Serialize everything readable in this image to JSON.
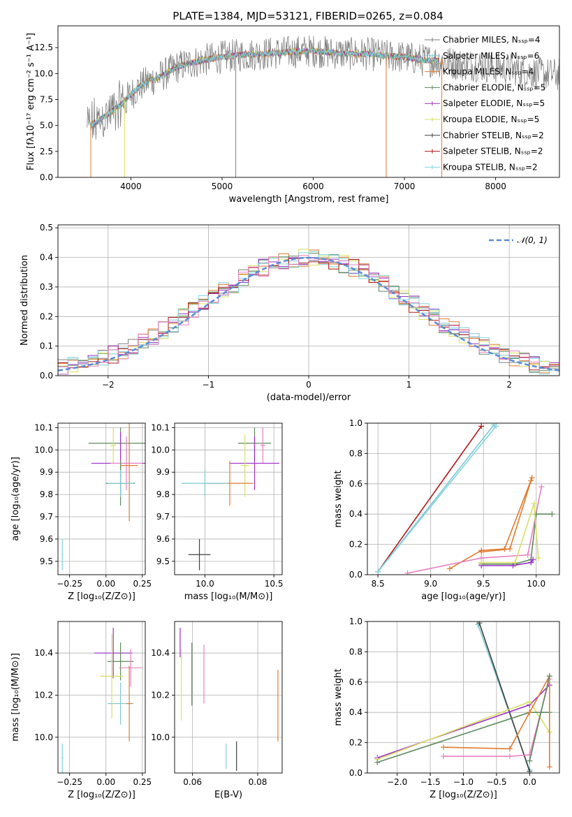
{
  "figure": {
    "title": "PLATE=1384, MJD=53121, FIBERID=0265, z=0.084"
  },
  "colors": {
    "Chabrier MILES": "#808080",
    "Salpeter MILES": "#7ec8d0",
    "Kroupa MILES": "#e07b30",
    "Chabrier ELODIE": "#5c8a5c",
    "Salpeter ELODIE": "#9b30c8",
    "Kroupa ELODIE": "#d8e060",
    "Chabrier STELIB": "#404040",
    "Salpeter STELIB": "#b01818",
    "Kroupa STELIB": "#80d4e0",
    "pink": "#e880c0"
  },
  "chart_data": [
    {
      "id": "spectrum",
      "type": "line",
      "title": "PLATE=1384, MJD=53121, FIBERID=0265, z=0.084",
      "xlabel": "wavelength [Angstrom, rest frame]",
      "ylabel": "Flux [fλ10⁻¹⁷ erg cm⁻² s⁻¹ A⁻¹]",
      "xlim": [
        3200,
        8700
      ],
      "ylim": [
        0,
        14.6
      ],
      "xticks": [
        "4000",
        "5000",
        "6000",
        "7000",
        "8000"
      ],
      "xtick_values": [
        4000,
        5000,
        6000,
        7000,
        8000
      ],
      "yticks": [
        "0.0",
        "2.5",
        "5.0",
        "7.5",
        "10.0",
        "12.5"
      ],
      "ytick_values": [
        0,
        2.5,
        5,
        7.5,
        10,
        12.5
      ],
      "continuum": {
        "x": [
          3500,
          3600,
          3700,
          3800,
          3900,
          4000,
          4100,
          4200,
          4300,
          4400,
          4500,
          4600,
          4800,
          5000,
          5200,
          5400,
          5600,
          5800,
          6000,
          6200,
          6400,
          6600,
          6800,
          7000,
          7200,
          7400,
          7600,
          7800,
          8000,
          8200,
          8400,
          8600
        ],
        "y": [
          4.8,
          5.2,
          5.8,
          6.4,
          7.1,
          8.0,
          8.8,
          9.3,
          9.6,
          10.1,
          10.6,
          10.9,
          11.3,
          11.6,
          11.8,
          11.9,
          12.0,
          12.1,
          12.2,
          12.0,
          11.9,
          11.9,
          11.7,
          11.6,
          11.3,
          11.2,
          10.9,
          10.8,
          10.6,
          10.4,
          10.1,
          9.9
        ]
      },
      "legend": [
        "Chabrier MILES, Nₛₛₚ=4",
        "Salpeter MILES, Nₛₛₚ=6",
        "Kroupa MILES, Nₛₛₚ=4",
        "Chabrier ELODIE, Nₛₛₚ=5",
        "Salpeter ELODIE, Nₛₛₚ=5",
        "Kroupa ELODIE, Nₛₛₚ=5",
        "Chabrier STELIB, Nₛₛₚ=2",
        "Salpeter STELIB, Nₛₛₚ=2",
        "Kroupa STELIB, Nₛₛₚ=2"
      ],
      "legend_placement": "right",
      "grid": false
    },
    {
      "id": "residuals",
      "type": "line",
      "xlabel": "(data-model)/error",
      "ylabel": "Normed distribution",
      "xlim": [
        -2.5,
        2.5
      ],
      "ylim": [
        0,
        0.51
      ],
      "xticks": [
        "−2",
        "−1",
        "0",
        "1",
        "2"
      ],
      "xtick_values": [
        -2,
        -1,
        0,
        1,
        2
      ],
      "yticks": [
        "0.0",
        "0.1",
        "0.2",
        "0.3",
        "0.4",
        "0.5"
      ],
      "ytick_values": [
        0,
        0.1,
        0.2,
        0.3,
        0.4,
        0.5
      ],
      "legend": [
        "𝒩(0, 1)"
      ],
      "legend_placement": "top-right",
      "grid": true,
      "bin_edges_start": -2.5,
      "bin_width": 0.1,
      "n_bins": 50
    },
    {
      "id": "age-vs-Z",
      "type": "scatter",
      "xlabel": "Z [log₁₀(Z/Z⊙)]",
      "ylabel": "age  [log₁₀(age/yr)]",
      "xlim": [
        -0.33,
        0.27
      ],
      "ylim": [
        9.44,
        10.12
      ],
      "xticks": [
        "−0.25",
        "0.00",
        "0.25"
      ],
      "xtick_values": [
        -0.25,
        0,
        0.25
      ],
      "yticks": [
        "9.5",
        "9.6",
        "9.7",
        "9.8",
        "9.9",
        "10.0",
        "10.1"
      ],
      "ytick_values": [
        9.5,
        9.6,
        9.7,
        9.8,
        9.9,
        10.0,
        10.1
      ],
      "grid": true,
      "points": [
        {
          "x": 0.1,
          "y": 10.03,
          "xe": 0.22,
          "ye": 0.07,
          "c": "#5c8a5c"
        },
        {
          "x": 0.05,
          "y": 10.02,
          "xe": 0.02,
          "ye": 0.08,
          "c": "#d8e060"
        },
        {
          "x": 0.1,
          "y": 9.94,
          "xe": 0.2,
          "ye": 0.14,
          "c": "#9b30c8"
        },
        {
          "x": 0.14,
          "y": 9.94,
          "xe": 0.11,
          "ye": 0.12,
          "c": "#e880c0"
        },
        {
          "x": 0.16,
          "y": 9.93,
          "xe": 0.06,
          "ye": 0.25,
          "c": "#e07b30"
        },
        {
          "x": 0.1,
          "y": 9.85,
          "xe": 0.1,
          "ye": 0.1,
          "c": "#5c8a5c"
        },
        {
          "x": 0.1,
          "y": 9.85,
          "xe": 0.09,
          "ye": 0.06,
          "c": "#7ec8d0"
        },
        {
          "x": -0.3,
          "y": 9.53,
          "xe": 0.005,
          "ye": 0.07,
          "c": "#80d4e0"
        }
      ]
    },
    {
      "id": "age-vs-mass",
      "type": "scatter",
      "xlabel": "mass [log₁₀(M/M⊙)]",
      "ylabel": "",
      "xlim": [
        9.78,
        10.56
      ],
      "ylim": [
        9.44,
        10.12
      ],
      "xticks": [
        "10.0",
        "10.5"
      ],
      "xtick_values": [
        10.0,
        10.5
      ],
      "yticks": [
        "9.5",
        "9.6",
        "9.7",
        "9.8",
        "9.9",
        "10.0",
        "10.1"
      ],
      "ytick_values": [
        9.5,
        9.6,
        9.7,
        9.8,
        9.9,
        10.0,
        10.1
      ],
      "grid": true,
      "points": [
        {
          "x": 10.36,
          "y": 10.03,
          "xe": 0.12,
          "ye": 0.07,
          "c": "#5c8a5c"
        },
        {
          "x": 10.42,
          "y": 10.02,
          "xe": 0.02,
          "ye": 0.08,
          "c": "#e880c0"
        },
        {
          "x": 10.36,
          "y": 9.94,
          "xe": 0.18,
          "ye": 0.12,
          "c": "#9b30c8"
        },
        {
          "x": 10.29,
          "y": 9.93,
          "xe": 0.03,
          "ye": 0.14,
          "c": "#d8e060"
        },
        {
          "x": 10.18,
          "y": 9.85,
          "xe": 0.17,
          "ye": 0.1,
          "c": "#e07b30"
        },
        {
          "x": 10.0,
          "y": 9.85,
          "xe": 0.17,
          "ye": 0.06,
          "c": "#7ec8d0"
        },
        {
          "x": 9.96,
          "y": 9.53,
          "xe": 0.08,
          "ye": 0.07,
          "c": "#404040"
        }
      ]
    },
    {
      "id": "massweight-vs-age",
      "type": "line",
      "xlabel": "age  [log₁₀(age/yr)]",
      "ylabel": "mass weight",
      "xlim": [
        8.4,
        10.22
      ],
      "ylim": [
        0,
        1.0
      ],
      "xticks": [
        "8.5",
        "9.0",
        "9.5",
        "10.0"
      ],
      "xtick_values": [
        8.5,
        9.0,
        9.5,
        10.0
      ],
      "yticks": [
        "0.0",
        "0.2",
        "0.4",
        "0.6",
        "0.8",
        "1.0"
      ],
      "ytick_values": [
        0,
        0.2,
        0.4,
        0.6,
        0.8,
        1.0
      ],
      "grid": true,
      "series": [
        {
          "x": [
            8.5,
            9.48
          ],
          "y": [
            0.02,
            0.98
          ],
          "c": "#b01818"
        },
        {
          "x": [
            8.5,
            9.6
          ],
          "y": [
            0.02,
            0.99
          ],
          "c": "#7ec8d0"
        },
        {
          "x": [
            8.5,
            9.62
          ],
          "y": [
            0.02,
            0.98
          ],
          "c": "#80d4e0"
        },
        {
          "x": [
            9.18,
            9.48,
            9.7,
            9.96
          ],
          "y": [
            0.04,
            0.16,
            0.17,
            0.64
          ],
          "c": "#e07b30"
        },
        {
          "x": [
            8.78,
            9.48,
            9.92,
            10.05
          ],
          "y": [
            0.01,
            0.11,
            0.13,
            0.58
          ],
          "c": "#e880c0"
        },
        {
          "x": [
            9.48,
            9.8,
            9.95,
            10.0,
            10.15
          ],
          "y": [
            0.07,
            0.07,
            0.1,
            0.4,
            0.4
          ],
          "c": "#5c8a5c"
        },
        {
          "x": [
            9.48,
            9.78,
            9.95,
            9.97
          ],
          "y": [
            0.06,
            0.06,
            0.08,
            0.1
          ],
          "c": "#9b30c8"
        },
        {
          "x": [
            9.48,
            9.8,
            9.98,
            10.02
          ],
          "y": [
            0.08,
            0.08,
            0.47,
            0.11
          ],
          "c": "#d8e060"
        },
        {
          "x": [
            9.48,
            9.75,
            9.95
          ],
          "y": [
            0.15,
            0.17,
            0.62
          ],
          "c": "#e07b30"
        }
      ]
    },
    {
      "id": "mass-vs-Z",
      "type": "scatter",
      "xlabel": "Z [log₁₀(Z/Z⊙)]",
      "ylabel": "mass [log₁₀(M/M⊙)]",
      "xlim": [
        -0.33,
        0.27
      ],
      "ylim": [
        9.83,
        10.55
      ],
      "xticks": [
        "−0.25",
        "0.00",
        "0.25"
      ],
      "xtick_values": [
        -0.25,
        0,
        0.25
      ],
      "yticks": [
        "10.0",
        "10.2",
        "10.4"
      ],
      "ytick_values": [
        10.0,
        10.2,
        10.4
      ],
      "grid": true,
      "points": [
        {
          "x": 0.05,
          "y": 10.4,
          "xe": 0.13,
          "ye": 0.12,
          "c": "#9b30c8"
        },
        {
          "x": 0.1,
          "y": 10.36,
          "xe": 0.09,
          "ye": 0.09,
          "c": "#5c8a5c"
        },
        {
          "x": 0.17,
          "y": 10.33,
          "xe": 0.08,
          "ye": 0.09,
          "c": "#e880c0"
        },
        {
          "x": 0.04,
          "y": 10.29,
          "xe": 0.08,
          "ye": 0.2,
          "c": "#d8e060"
        },
        {
          "x": 0.1,
          "y": 10.16,
          "xe": 0.09,
          "ye": 0.1,
          "c": "#7ec8d0"
        },
        {
          "x": 0.16,
          "y": 10.16,
          "xe": 0.02,
          "ye": 0.18,
          "c": "#e07b30"
        },
        {
          "x": -0.3,
          "y": 9.9,
          "xe": 0.005,
          "ye": 0.07,
          "c": "#80d4e0"
        }
      ]
    },
    {
      "id": "mass-vs-EBV",
      "type": "scatter",
      "xlabel": "E(B-V)",
      "ylabel": "",
      "xlim": [
        0.0545,
        0.0875
      ],
      "ylim": [
        9.83,
        10.55
      ],
      "xticks": [
        "0.06",
        "0.08"
      ],
      "xtick_values": [
        0.06,
        0.08
      ],
      "yticks": [
        "10.0",
        "10.2",
        "10.4"
      ],
      "ytick_values": [
        10.0,
        10.2,
        10.4
      ],
      "grid": true,
      "points": [
        {
          "x": 0.0562,
          "y": 10.45,
          "xe": 0,
          "ye": 0.07,
          "c": "#9b30c8"
        },
        {
          "x": 0.0566,
          "y": 10.25,
          "xe": 0,
          "ye": 0.17,
          "c": "#d8e060"
        },
        {
          "x": 0.0598,
          "y": 10.3,
          "xe": 0,
          "ye": 0.15,
          "c": "#5c8a5c"
        },
        {
          "x": 0.0635,
          "y": 10.3,
          "xe": 0,
          "ye": 0.14,
          "c": "#e880c0"
        },
        {
          "x": 0.0703,
          "y": 9.91,
          "xe": 0,
          "ye": 0.06,
          "c": "#80d4e0"
        },
        {
          "x": 0.0735,
          "y": 9.91,
          "xe": 0,
          "ye": 0.07,
          "c": "#404040"
        },
        {
          "x": 0.0862,
          "y": 10.15,
          "xe": 0,
          "ye": 0.17,
          "c": "#e07b30"
        }
      ]
    },
    {
      "id": "massweight-vs-Z",
      "type": "line",
      "xlabel": "Z [log₁₀(Z/Z⊙)]",
      "ylabel": "mass weight",
      "xlim": [
        -2.45,
        0.45
      ],
      "ylim": [
        0,
        1.0
      ],
      "xticks": [
        "−2.0",
        "−1.5",
        "−1.0",
        "−0.5",
        "0.0"
      ],
      "xtick_values": [
        -2.0,
        -1.5,
        -1.0,
        -0.5,
        0.0
      ],
      "yticks": [
        "0.0",
        "0.2",
        "0.4",
        "0.6",
        "0.8",
        "1.0"
      ],
      "ytick_values": [
        0,
        0.2,
        0.4,
        0.6,
        0.8,
        1.0
      ],
      "grid": true,
      "series": [
        {
          "x": [
            -0.78,
            0.0
          ],
          "y": [
            0.98,
            0.02
          ],
          "c": "#7ec8d0"
        },
        {
          "x": [
            -0.76,
            0.0
          ],
          "y": [
            0.99,
            0.01
          ],
          "c": "#404040"
        },
        {
          "x": [
            -2.3,
            0.0,
            0.3
          ],
          "y": [
            0.1,
            0.45,
            0.58
          ],
          "c": "#9b30c8"
        },
        {
          "x": [
            -2.3,
            0.0,
            0.3
          ],
          "y": [
            0.09,
            0.47,
            0.27
          ],
          "c": "#d8e060"
        },
        {
          "x": [
            -2.3,
            0.0,
            0.3
          ],
          "y": [
            0.07,
            0.4,
            0.4
          ],
          "c": "#5c8a5c"
        },
        {
          "x": [
            -1.3,
            -0.3,
            0.0,
            0.3,
            0.3
          ],
          "y": [
            0.17,
            0.16,
            0.4,
            0.64,
            0.04
          ],
          "c": "#e07b30"
        },
        {
          "x": [
            -1.3,
            -0.3,
            0.0,
            0.3
          ],
          "y": [
            0.11,
            0.11,
            0.12,
            0.62
          ],
          "c": "#e880c0"
        },
        {
          "x": [
            0.0,
            0.3
          ],
          "y": [
            0.08,
            0.64
          ],
          "c": "#5c8a5c"
        }
      ]
    }
  ]
}
